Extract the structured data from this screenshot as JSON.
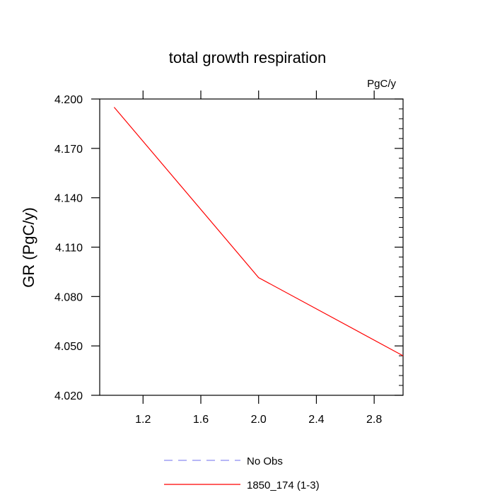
{
  "chart_data": {
    "type": "line",
    "title": "total growth respiration",
    "units_label": "PgC/y",
    "xlabel": "",
    "ylabel": "GR  (PgC/y)",
    "xlim": [
      0.9,
      3.0
    ],
    "ylim": [
      4.02,
      4.2
    ],
    "xticks": [
      1.2,
      1.6,
      2.0,
      2.4,
      2.8
    ],
    "xtick_labels": [
      "1.2",
      "1.6",
      "2.0",
      "2.4",
      "2.8"
    ],
    "yticks": [
      4.02,
      4.05,
      4.08,
      4.11,
      4.14,
      4.17,
      4.2
    ],
    "ytick_labels": [
      "4.020",
      "4.050",
      "4.080",
      "4.110",
      "4.140",
      "4.170",
      "4.200"
    ],
    "series": [
      {
        "name": "No Obs",
        "style": "dashed",
        "color": "#8c8cf0",
        "x": [],
        "y": []
      },
      {
        "name": "1850_174 (1-3)",
        "style": "solid",
        "color": "#ff0000",
        "x": [
          1.0,
          2.0,
          3.0
        ],
        "y": [
          4.195,
          4.0915,
          4.044
        ]
      }
    ]
  }
}
